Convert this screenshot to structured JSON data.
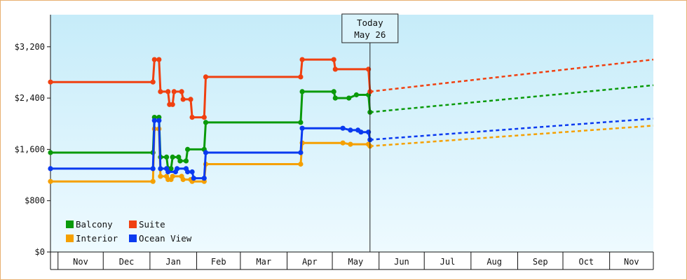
{
  "chart_data": {
    "type": "line",
    "y_axis": {
      "ticks": [
        0,
        800,
        1600,
        2400,
        3200
      ],
      "tick_labels": [
        "$0",
        "$800",
        "$1,600",
        "$2,400",
        "$3,200"
      ],
      "ylim": [
        0,
        3700
      ]
    },
    "x_axis": {
      "range": [
        "2023-10-27",
        "2024-11-30"
      ],
      "months": [
        {
          "label": "Nov",
          "start": "2023-11-01",
          "end": "2023-12-01"
        },
        {
          "label": "Dec",
          "start": "2023-12-01",
          "end": "2024-01-01"
        },
        {
          "label": "Jan",
          "start": "2024-01-01",
          "end": "2024-02-01"
        },
        {
          "label": "Feb",
          "start": "2024-02-01",
          "end": "2024-03-01"
        },
        {
          "label": "Mar",
          "start": "2024-03-01",
          "end": "2024-04-01"
        },
        {
          "label": "Apr",
          "start": "2024-04-01",
          "end": "2024-05-01"
        },
        {
          "label": "May",
          "start": "2024-05-01",
          "end": "2024-06-01"
        },
        {
          "label": "Jun",
          "start": "2024-06-01",
          "end": "2024-07-01"
        },
        {
          "label": "Jul",
          "start": "2024-07-01",
          "end": "2024-08-01"
        },
        {
          "label": "Aug",
          "start": "2024-08-01",
          "end": "2024-09-01"
        },
        {
          "label": "Sep",
          "start": "2024-09-01",
          "end": "2024-10-01"
        },
        {
          "label": "Oct",
          "start": "2024-10-01",
          "end": "2024-11-01"
        },
        {
          "label": "Nov",
          "start": "2024-11-01",
          "end": "2024-12-01"
        }
      ]
    },
    "today": {
      "date": "2024-05-26",
      "label_line1": "Today",
      "label_line2": "May 26"
    },
    "grid": false,
    "legend_position": "bottom-left",
    "series": [
      {
        "name": "Balcony",
        "color": "#0a9a0a",
        "values": [
          [
            "2023-10-27",
            1550
          ],
          [
            "2024-01-03",
            1550
          ],
          [
            "2024-01-04",
            2100
          ],
          [
            "2024-01-07",
            2100
          ],
          [
            "2024-01-08",
            1480
          ],
          [
            "2024-01-12",
            1480
          ],
          [
            "2024-01-13",
            1300
          ],
          [
            "2024-01-15",
            1300
          ],
          [
            "2024-01-16",
            1480
          ],
          [
            "2024-01-20",
            1480
          ],
          [
            "2024-01-21",
            1420
          ],
          [
            "2024-01-25",
            1420
          ],
          [
            "2024-01-26",
            1600
          ],
          [
            "2024-02-06",
            1600
          ],
          [
            "2024-02-07",
            2020
          ],
          [
            "2024-04-10",
            2020
          ],
          [
            "2024-04-11",
            2500
          ],
          [
            "2024-05-02",
            2500
          ],
          [
            "2024-05-03",
            2400
          ],
          [
            "2024-05-12",
            2400
          ],
          [
            "2024-05-17",
            2450
          ],
          [
            "2024-05-25",
            2450
          ],
          [
            "2024-05-26",
            2180
          ]
        ],
        "forecast": [
          [
            "2024-05-26",
            2180
          ],
          [
            "2024-11-30",
            2600
          ]
        ]
      },
      {
        "name": "Suite",
        "color": "#f04010",
        "values": [
          [
            "2023-10-27",
            2650
          ],
          [
            "2024-01-03",
            2650
          ],
          [
            "2024-01-04",
            3000
          ],
          [
            "2024-01-07",
            3000
          ],
          [
            "2024-01-08",
            2500
          ],
          [
            "2024-01-13",
            2500
          ],
          [
            "2024-01-14",
            2300
          ],
          [
            "2024-01-16",
            2300
          ],
          [
            "2024-01-17",
            2500
          ],
          [
            "2024-01-22",
            2500
          ],
          [
            "2024-01-23",
            2380
          ],
          [
            "2024-01-28",
            2380
          ],
          [
            "2024-01-29",
            2100
          ],
          [
            "2024-02-06",
            2100
          ],
          [
            "2024-02-07",
            2730
          ],
          [
            "2024-04-10",
            2730
          ],
          [
            "2024-04-11",
            3000
          ],
          [
            "2024-05-02",
            3000
          ],
          [
            "2024-05-03",
            2850
          ],
          [
            "2024-05-25",
            2850
          ],
          [
            "2024-05-26",
            2500
          ]
        ],
        "forecast": [
          [
            "2024-05-26",
            2500
          ],
          [
            "2024-11-30",
            3000
          ]
        ]
      },
      {
        "name": "Interior",
        "color": "#f5a000",
        "values": [
          [
            "2023-10-27",
            1100
          ],
          [
            "2024-01-03",
            1100
          ],
          [
            "2024-01-04",
            1920
          ],
          [
            "2024-01-07",
            1920
          ],
          [
            "2024-01-08",
            1180
          ],
          [
            "2024-01-12",
            1180
          ],
          [
            "2024-01-13",
            1130
          ],
          [
            "2024-01-15",
            1130
          ],
          [
            "2024-01-16",
            1180
          ],
          [
            "2024-01-22",
            1180
          ],
          [
            "2024-01-23",
            1130
          ],
          [
            "2024-01-28",
            1130
          ],
          [
            "2024-01-29",
            1100
          ],
          [
            "2024-02-06",
            1100
          ],
          [
            "2024-02-07",
            1370
          ],
          [
            "2024-04-10",
            1370
          ],
          [
            "2024-04-11",
            1700
          ],
          [
            "2024-05-08",
            1700
          ],
          [
            "2024-05-13",
            1680
          ],
          [
            "2024-05-25",
            1680
          ],
          [
            "2024-05-26",
            1650
          ]
        ],
        "forecast": [
          [
            "2024-05-26",
            1650
          ],
          [
            "2024-11-30",
            1970
          ]
        ]
      },
      {
        "name": "Ocean View",
        "color": "#0a3af0",
        "values": [
          [
            "2023-10-27",
            1300
          ],
          [
            "2024-01-03",
            1300
          ],
          [
            "2024-01-04",
            2050
          ],
          [
            "2024-01-07",
            2050
          ],
          [
            "2024-01-08",
            1300
          ],
          [
            "2024-01-12",
            1300
          ],
          [
            "2024-01-13",
            1250
          ],
          [
            "2024-01-18",
            1250
          ],
          [
            "2024-01-19",
            1300
          ],
          [
            "2024-01-25",
            1300
          ],
          [
            "2024-01-26",
            1250
          ],
          [
            "2024-01-29",
            1250
          ],
          [
            "2024-01-30",
            1150
          ],
          [
            "2024-02-06",
            1150
          ],
          [
            "2024-02-07",
            1550
          ],
          [
            "2024-04-10",
            1550
          ],
          [
            "2024-04-11",
            1930
          ],
          [
            "2024-05-08",
            1930
          ],
          [
            "2024-05-13",
            1900
          ],
          [
            "2024-05-18",
            1900
          ],
          [
            "2024-05-20",
            1870
          ],
          [
            "2024-05-25",
            1870
          ],
          [
            "2024-05-26",
            1750
          ]
        ],
        "forecast": [
          [
            "2024-05-26",
            1750
          ],
          [
            "2024-11-30",
            2080
          ]
        ]
      }
    ]
  }
}
